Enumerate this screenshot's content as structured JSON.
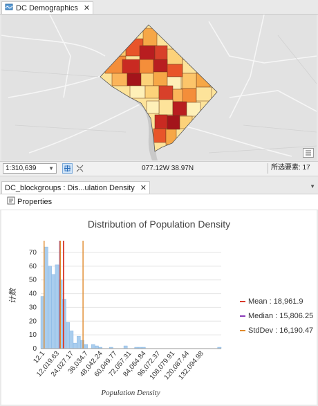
{
  "map_view": {
    "tab_label": "DC Demographics",
    "scale": "1:310,639",
    "coordinates": "077.12W 38.97N",
    "selected_features": "所选要素: 17"
  },
  "chart_view": {
    "tab_label": "DC_blockgroups : Dis...ulation Density",
    "properties_label": "Properties"
  },
  "chart_data": {
    "type": "bar",
    "title": "Distribution of Population Density",
    "xlabel": "Population Density",
    "ylabel": "计数",
    "x_ticks": [
      "12.1",
      "12,019.63",
      "24,027.17",
      "36,034.7",
      "48,042.24",
      "60,049.77",
      "72,057.31",
      "84,064.84",
      "96,072.37",
      "108,079.91",
      "120,087.44",
      "132,094.98"
    ],
    "y_ticks": [
      0,
      10,
      20,
      30,
      40,
      50,
      60,
      70
    ],
    "ylim": [
      0,
      78
    ],
    "bins": 50,
    "values": [
      38,
      74,
      60,
      54,
      61,
      50,
      36,
      19,
      13,
      4,
      9,
      6,
      3,
      0,
      3,
      2,
      1,
      0,
      0,
      1,
      0,
      0,
      0,
      2,
      0,
      0,
      1,
      1,
      1,
      0,
      0,
      0,
      0,
      0,
      0,
      0,
      0,
      0,
      0,
      0,
      0,
      0,
      0,
      0,
      0,
      0,
      0,
      0,
      0,
      1
    ],
    "lines": [
      {
        "name": "Mean",
        "value": 18961.9,
        "label": "Mean : 18,961.9",
        "color": "#d93a2b"
      },
      {
        "name": "Median",
        "value": 15806.25,
        "label": "Median : 15,806.25",
        "color": "#8a39b8"
      },
      {
        "name": "StdDev",
        "value": 16190.47,
        "label": "StdDev : 16,190.47",
        "color": "#e08a2c"
      }
    ],
    "grid": true,
    "legend_position": "right"
  },
  "colors": {
    "bar_fill": "#a9cdee",
    "bar_stroke": "#7aafe0"
  }
}
